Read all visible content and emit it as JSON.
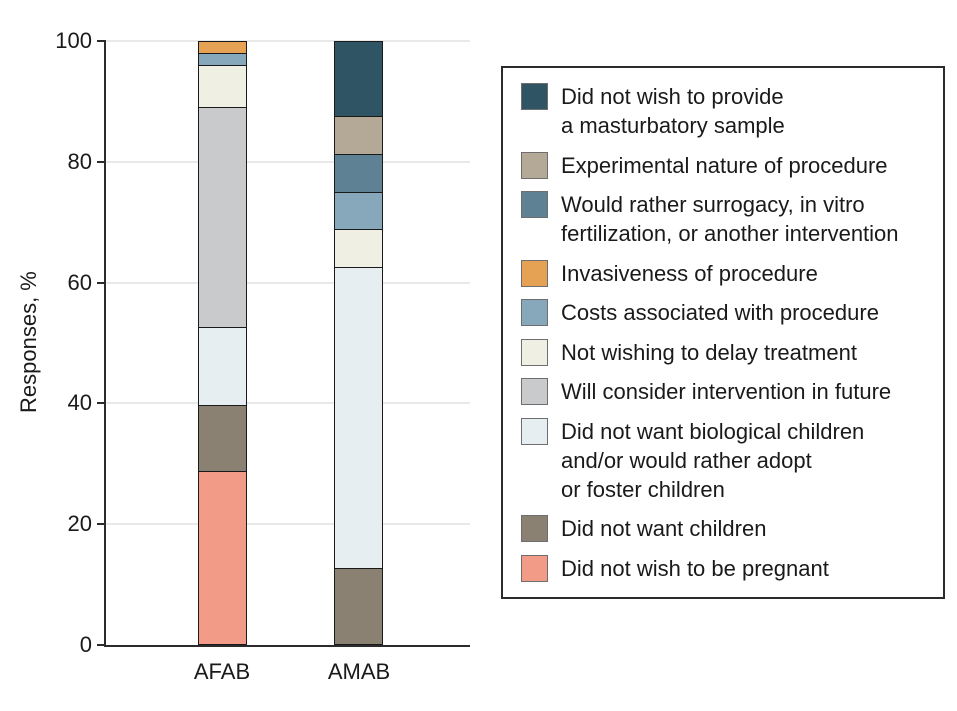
{
  "chart_data": {
    "type": "bar",
    "stacked": true,
    "ylabel": "Responses, %",
    "ylim": [
      0,
      100
    ],
    "yticks": [
      0,
      20,
      40,
      60,
      80,
      100
    ],
    "grid": true,
    "legend_position": "right",
    "categories": [
      "AFAB",
      "AMAB"
    ],
    "series": [
      {
        "name": "Did not wish to provide a masturbatory sample",
        "color": "#2F5565",
        "values": [
          0,
          12.5
        ]
      },
      {
        "name": "Experimental nature of procedure",
        "color": "#B3A996",
        "values": [
          0,
          6.25
        ]
      },
      {
        "name": "Would rather surrogacy, in vitro fertilization, or another intervention",
        "color": "#5E8294",
        "values": [
          0,
          6.25
        ]
      },
      {
        "name": "Invasiveness of procedure",
        "color": "#E5A254",
        "values": [
          2,
          0
        ]
      },
      {
        "name": "Costs associated with procedure",
        "color": "#87A8BA",
        "values": [
          2,
          6.25
        ]
      },
      {
        "name": "Not wishing to delay treatment",
        "color": "#EFEFE3",
        "values": [
          7,
          6.25
        ]
      },
      {
        "name": "Will consider intervention in future",
        "color": "#C8CACC",
        "values": [
          36.5,
          0
        ]
      },
      {
        "name": "Did not want biological children and/or would rather adopt or foster children",
        "color": "#E7EEF2",
        "values": [
          13,
          50
        ]
      },
      {
        "name": "Did not want children",
        "color": "#8A8173",
        "values": [
          11,
          12.5
        ]
      },
      {
        "name": "Did not wish to be pregnant",
        "color": "#F29B87",
        "values": [
          28.5,
          0
        ]
      }
    ],
    "legend": [
      {
        "label": "Did not wish to provide\na masturbatory sample",
        "color": "#2F5565"
      },
      {
        "label": "Experimental nature of procedure",
        "color": "#B3A996"
      },
      {
        "label": "Would rather surrogacy, in vitro\nfertilization, or another intervention",
        "color": "#5E8294"
      },
      {
        "label": "Invasiveness of procedure",
        "color": "#E5A254"
      },
      {
        "label": "Costs associated with procedure",
        "color": "#87A8BA"
      },
      {
        "label": "Not wishing to delay treatment",
        "color": "#EFEFE3"
      },
      {
        "label": "Will consider intervention in future",
        "color": "#C8CACC"
      },
      {
        "label": "Did not want biological children\nand/or would rather adopt\nor foster children",
        "color": "#E7EEF2"
      },
      {
        "label": "Did not want children",
        "color": "#8A8173"
      },
      {
        "label": "Did not wish to be pregnant",
        "color": "#F29B87"
      }
    ]
  }
}
